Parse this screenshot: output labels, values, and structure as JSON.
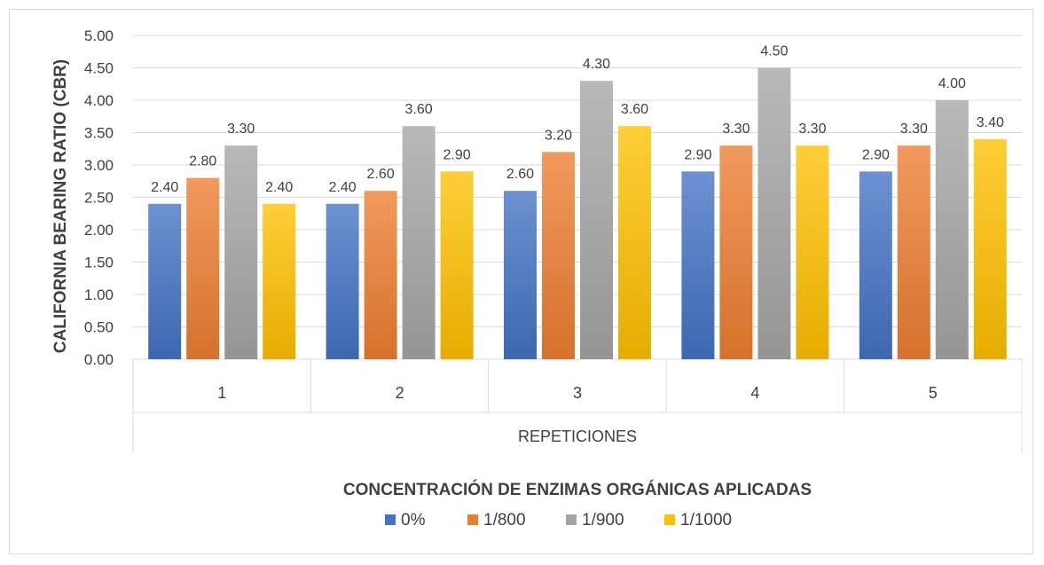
{
  "chart_data": {
    "type": "bar",
    "categories": [
      "1",
      "2",
      "3",
      "4",
      "5"
    ],
    "series": [
      {
        "name": "0%",
        "values": [
          2.4,
          2.4,
          2.6,
          2.9,
          2.9
        ],
        "color": "#4472c4"
      },
      {
        "name": "1/800",
        "values": [
          2.8,
          2.6,
          3.2,
          3.3,
          3.3
        ],
        "color": "#ed7d31"
      },
      {
        "name": "1/900",
        "values": [
          3.3,
          3.6,
          4.3,
          4.5,
          4.0
        ],
        "color": "#a5a5a5"
      },
      {
        "name": "1/1000",
        "values": [
          2.4,
          2.9,
          3.6,
          3.3,
          3.4
        ],
        "color": "#ffc000"
      }
    ],
    "ylabel": "CALIFORNIA BEARING RATIO (CBR)",
    "xlabel": "REPETICIONES",
    "legend_title": "CONCENTRACIÓN DE ENZIMAS ORGÁNICAS APLICADAS",
    "ylim": [
      0,
      5
    ],
    "yticks": [
      "0.00",
      "0.50",
      "1.00",
      "1.50",
      "2.00",
      "2.50",
      "3.00",
      "3.50",
      "4.00",
      "4.50",
      "5.00"
    ],
    "data_label_format": "2 decimals",
    "grid": true,
    "legend_position": "bottom"
  }
}
